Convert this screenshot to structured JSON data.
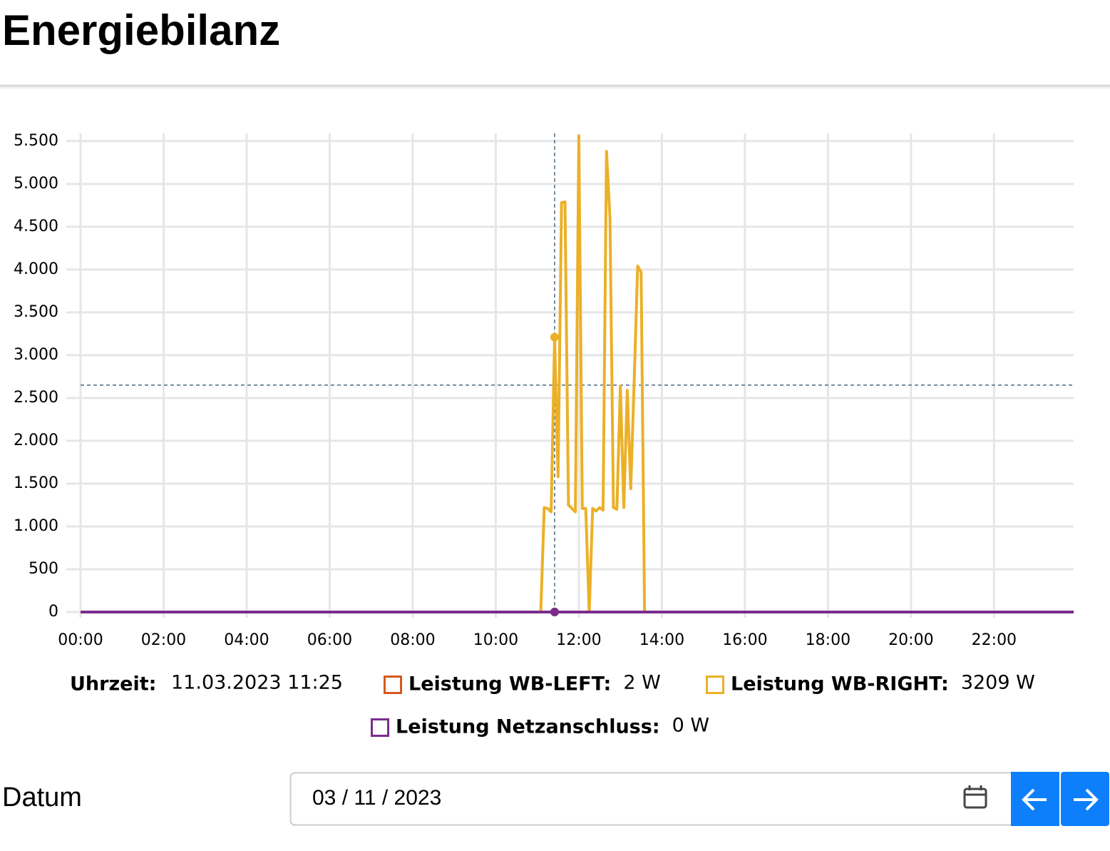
{
  "header": {
    "title": "Energiebilanz"
  },
  "chart_data": {
    "type": "line",
    "x": [
      "00:00",
      "11:05",
      "11:10",
      "11:15",
      "11:20",
      "11:25",
      "11:30",
      "11:35",
      "11:40",
      "11:45",
      "11:50",
      "11:55",
      "12:00",
      "12:05",
      "12:10",
      "12:15",
      "12:20",
      "12:25",
      "12:30",
      "12:35",
      "12:40",
      "12:45",
      "12:50",
      "12:55",
      "13:00",
      "13:05",
      "13:10",
      "13:15",
      "13:20",
      "13:25",
      "13:30",
      "13:35",
      "13:40",
      "23:55"
    ],
    "series": [
      {
        "name": "Leistung WB-LEFT:",
        "color": "#d35a1f",
        "values": [
          0,
          0,
          0,
          0,
          0,
          2,
          0,
          0,
          0,
          0,
          0,
          0,
          0,
          0,
          0,
          0,
          0,
          0,
          0,
          0,
          0,
          0,
          0,
          0,
          0,
          0,
          0,
          0,
          0,
          0,
          0,
          0,
          0,
          0
        ]
      },
      {
        "name": "Leistung WB-RIGHT:",
        "color": "#ecb027",
        "values": [
          0,
          0,
          1220,
          1210,
          1170,
          3209,
          1580,
          4780,
          4790,
          1250,
          1210,
          1170,
          5560,
          1210,
          1210,
          0,
          1210,
          1180,
          1220,
          1190,
          5380,
          4600,
          1220,
          1200,
          2640,
          1220,
          2590,
          1440,
          2700,
          4040,
          3970,
          0,
          0,
          0
        ]
      },
      {
        "name": "Leistung Netzanschluss:",
        "color": "#7b2d8e",
        "values": [
          0,
          0,
          0,
          0,
          0,
          0,
          0,
          0,
          0,
          0,
          0,
          0,
          0,
          0,
          0,
          0,
          0,
          0,
          0,
          0,
          0,
          0,
          0,
          0,
          0,
          0,
          0,
          0,
          0,
          0,
          0,
          0,
          0,
          0
        ]
      }
    ],
    "xlim": [
      "00:00",
      "23:55"
    ],
    "xticks": [
      "00:00",
      "02:00",
      "04:00",
      "06:00",
      "08:00",
      "10:00",
      "12:00",
      "14:00",
      "16:00",
      "18:00",
      "20:00",
      "22:00"
    ],
    "ylim": [
      0,
      5590
    ],
    "yticks": [
      0,
      500,
      {
        "value": 1000,
        "label": "1.000"
      },
      {
        "value": 1500,
        "label": "1.500"
      },
      {
        "value": 2000,
        "label": "2.000"
      },
      {
        "value": 2500,
        "label": "2.500"
      },
      {
        "value": 3000,
        "label": "3.000"
      },
      {
        "value": 3500,
        "label": "3.500"
      },
      {
        "value": 4000,
        "label": "4.000"
      },
      {
        "value": 4500,
        "label": "4.500"
      },
      {
        "value": 5000,
        "label": "5.000"
      },
      {
        "value": 5500,
        "label": "5.500"
      }
    ],
    "grid": true,
    "crosshair": {
      "x": "11:25",
      "y": 2650
    },
    "tooltip": {
      "time_label": "Uhrzeit:",
      "time": "11.03.2023 11:25",
      "value_labels": [
        "2 W",
        "3209 W",
        "0 W"
      ]
    }
  },
  "date_picker": {
    "label": "Datum",
    "value": "03 / 11 / 2023"
  }
}
